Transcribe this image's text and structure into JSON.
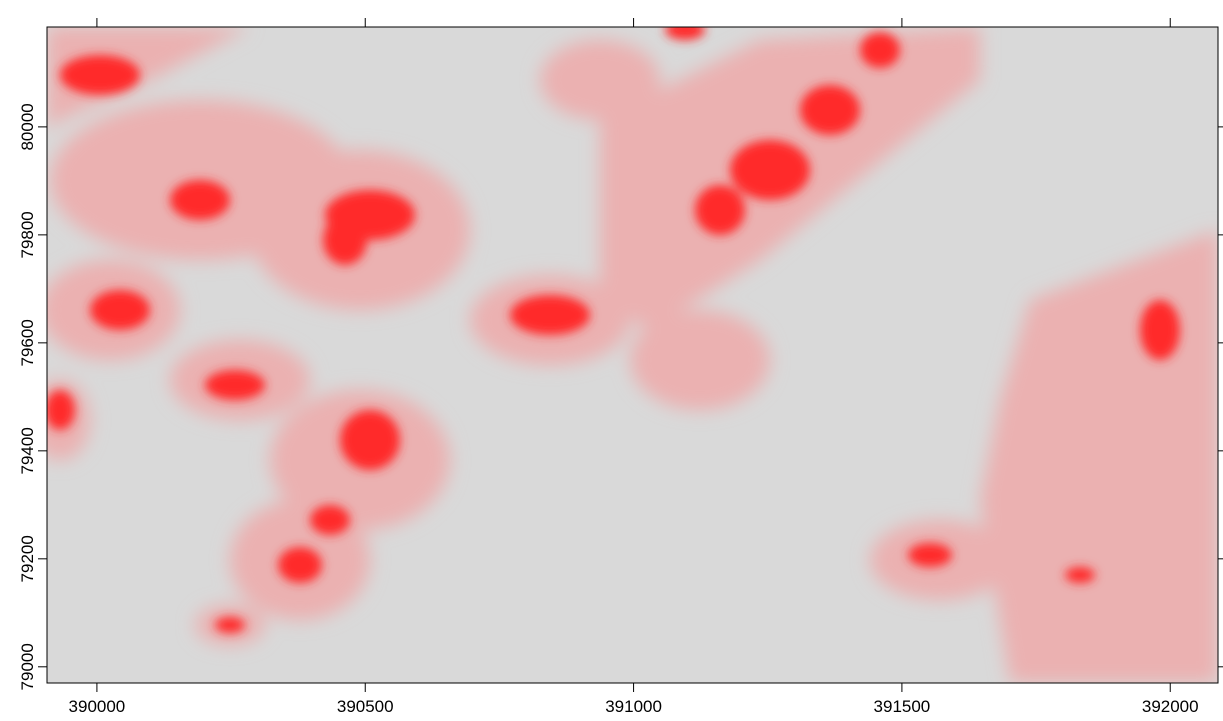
{
  "chart_data": {
    "type": "raster",
    "xlim": [
      389907,
      392089
    ],
    "ylim": [
      78970,
      80185
    ],
    "xticks": [
      390000,
      390500,
      391000,
      391500,
      392000
    ],
    "yticks": [
      79000,
      79200,
      79400,
      79600,
      79800,
      80000
    ]
  }
}
